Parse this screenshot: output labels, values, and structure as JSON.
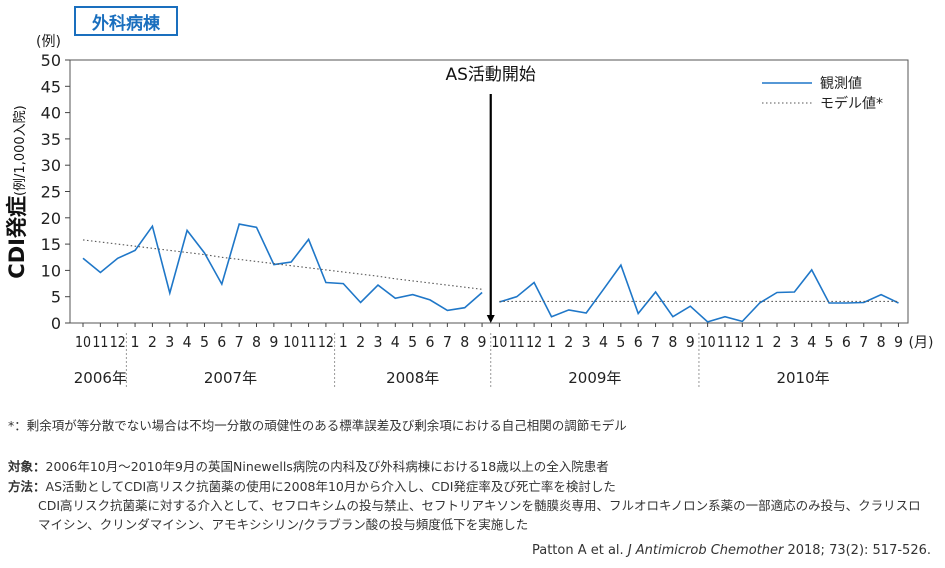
{
  "badge": "外科病棟",
  "chart_data": {
    "type": "line",
    "y_unit_label": "(例)",
    "ylabel_main": "CDI発症",
    "ylabel_sub": "(例/1,000入院)",
    "ylim": [
      0,
      50
    ],
    "yticks": [
      0,
      5,
      10,
      15,
      20,
      25,
      30,
      35,
      40,
      45,
      50
    ],
    "x_unit_label": "(月)",
    "month_labels": [
      "10",
      "11",
      "12",
      "1",
      "2",
      "3",
      "4",
      "5",
      "6",
      "7",
      "8",
      "9",
      "10",
      "11",
      "12",
      "1",
      "2",
      "3",
      "4",
      "5",
      "6",
      "7",
      "8",
      "9",
      "10",
      "11",
      "12",
      "1",
      "2",
      "3",
      "4",
      "5",
      "6",
      "7",
      "8",
      "9",
      "10",
      "11",
      "12",
      "1",
      "2",
      "3",
      "4",
      "5",
      "6",
      "7",
      "8",
      "9"
    ],
    "years": [
      {
        "label": "2006年",
        "start": 0,
        "end": 2
      },
      {
        "label": "2007年",
        "start": 3,
        "end": 14
      },
      {
        "label": "2008年",
        "start": 15,
        "end": 23
      },
      {
        "label": "2009年",
        "start": 24,
        "end": 35
      },
      {
        "label": "2010年",
        "start": 36,
        "end": 47
      }
    ],
    "intervention_label": "AS活動開始",
    "intervention_index": 23.5,
    "series": [
      {
        "name": "観測値",
        "style": "solid",
        "color": "#1f77c8",
        "segments": [
          {
            "start": 0,
            "values": [
              12.3,
              9.6,
              12.3,
              13.8,
              18.4,
              5.7,
              17.6,
              13.3,
              7.4,
              18.8,
              18.2,
              11.1,
              11.6,
              15.9,
              7.7,
              7.5,
              3.9,
              7.2,
              4.7,
              5.4,
              4.4,
              2.4,
              2.9,
              5.8
            ]
          },
          {
            "start": 24,
            "values": [
              4.0,
              5.0,
              7.7,
              1.2,
              2.5,
              1.9,
              6.4,
              11.0,
              1.8,
              5.9,
              1.2,
              3.2,
              0.2,
              1.2,
              0.3,
              3.8,
              5.8,
              5.9,
              10.1,
              3.8,
              3.8,
              3.9,
              5.4,
              3.8
            ]
          }
        ]
      },
      {
        "name": "モデル値*",
        "style": "dotted",
        "color": "#555555",
        "segments": [
          {
            "start": 0,
            "values": [
              15.8,
              15.4,
              15.0,
              14.6,
              14.2,
              13.8,
              13.4,
              13.0,
              12.5,
              12.1,
              11.7,
              11.3,
              10.9,
              10.5,
              10.1,
              9.7,
              9.3,
              8.9,
              8.4,
              8.0,
              7.6,
              7.2,
              6.8,
              6.4
            ]
          },
          {
            "start": 24,
            "values": [
              4.1,
              4.1,
              4.1,
              4.1,
              4.1,
              4.1,
              4.1,
              4.1,
              4.1,
              4.1,
              4.1,
              4.1,
              4.1,
              4.1,
              4.1,
              4.1,
              4.1,
              4.1,
              4.1,
              4.1,
              4.1,
              4.1,
              4.1,
              4.1
            ]
          }
        ]
      }
    ],
    "legend_position": "top-right"
  },
  "footnote": "*：剰余項が等分散でない場合は不均一分散の頑健性のある標準誤差及び剰余項における自己相関の調節モデル",
  "subjects_label": "対象：",
  "subjects_text": "2006年10月～2010年9月の英国Ninewells病院の内科及び外科病棟における18歳以上の全入院患者",
  "method_label": "方法：",
  "method_lines": [
    "AS活動としてCDI高リスク抗菌薬の使用に2008年10月から介入し、CDI発症率及び死亡率を検討した",
    "CDI高リスク抗菌薬に対する介入として、セフロキシムの投与禁止、セフトリアキソンを髄膜炎専用、フルオロキノロン系薬の一部適応のみ投与、クラリスロ",
    "マイシン、クリンダマイシン、アモキシシリン/クラブラン酸の投与頻度低下を実施した"
  ],
  "citation_pre": "Patton A et al. ",
  "citation_journal": "J Antimicrob Chemother",
  "citation_post": " 2018; 73(2): 517-526."
}
